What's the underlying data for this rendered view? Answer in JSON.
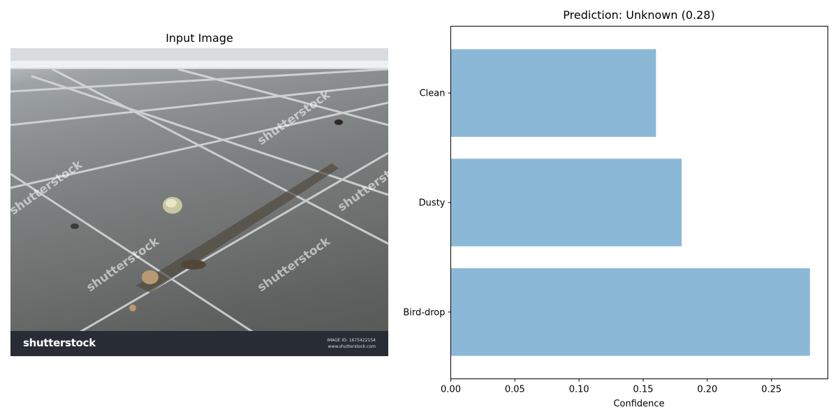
{
  "image_panel": {
    "title": "Input Image",
    "photo_logo": "shutterstock",
    "photo_image_id": "IMAGE ID: 1675422154",
    "photo_site": "www.shutterstock.com",
    "watermark": "shutterstock"
  },
  "chart_data": {
    "type": "bar",
    "orientation": "horizontal",
    "title": "Prediction: Unknown (0.28)",
    "xlabel": "Confidence",
    "ylabel": "",
    "categories": [
      "Bird-drop",
      "Dusty",
      "Clean"
    ],
    "values": [
      0.28,
      0.18,
      0.16
    ],
    "xlim": [
      0,
      0.294
    ],
    "xticks": [
      "0.00",
      "0.05",
      "0.10",
      "0.15",
      "0.20",
      "0.25"
    ],
    "xtick_values": [
      0,
      0.05,
      0.1,
      0.15,
      0.2,
      0.25
    ],
    "bar_color": "#8cb8d8",
    "grid": false,
    "legend": "none"
  }
}
